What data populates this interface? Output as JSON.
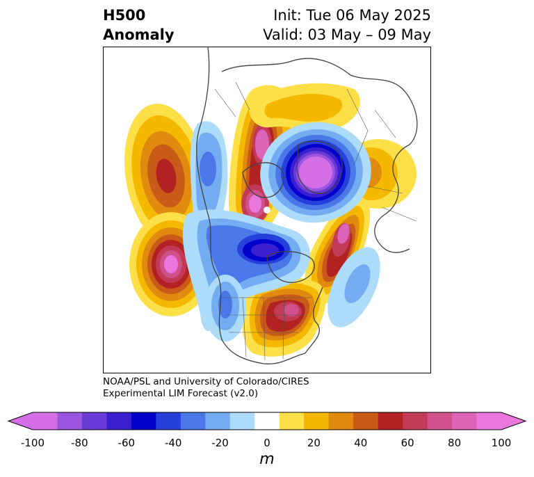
{
  "header": {
    "title_line1": "H500",
    "title_line2": "Anomaly",
    "init_text": "Init: Tue 06 May 2025",
    "valid_text": "Valid: 03 May – 09 May"
  },
  "credit": {
    "line1": "NOAA/PSL and University of Colorado/CIRES",
    "line2": "Experimental LIM Forecast (v2.0)"
  },
  "colorbar": {
    "units": "m",
    "ticks": [
      "-100",
      "-80",
      "-60",
      "-40",
      "-20",
      "0",
      "20",
      "40",
      "60",
      "80",
      "100"
    ],
    "levels": [
      -100,
      -90,
      -80,
      -70,
      -60,
      -50,
      -40,
      -30,
      -20,
      -10,
      10,
      20,
      30,
      40,
      50,
      60,
      70,
      80,
      90,
      100
    ],
    "colors": [
      "#d46ee6",
      "#9b55de",
      "#6a3ad6",
      "#3a1fd0",
      "#0000cc",
      "#2540db",
      "#4b78e8",
      "#74acf2",
      "#addcfa",
      "#ffffff",
      "#fde047",
      "#f5b800",
      "#e08a10",
      "#c95a18",
      "#b22222",
      "#c23a55",
      "#d0508a",
      "#db64b8",
      "#ea78dc"
    ],
    "extend_low_color": "#d46ee6",
    "extend_high_color": "#ea78dc"
  },
  "map_data": {
    "field": "500 hPa geopotential height anomaly",
    "projection": "north-polar-stereographic",
    "anomalies": [
      {
        "sign": "positive",
        "peak_m": 75,
        "region": "North Pacific west"
      },
      {
        "sign": "positive",
        "peak_m": 95,
        "region": "Central North Pacific"
      },
      {
        "sign": "positive",
        "peak_m": 95,
        "region": "Siberia / Arctic"
      },
      {
        "sign": "positive",
        "peak_m": 80,
        "region": "Scandinavia / North Atlantic"
      },
      {
        "sign": "positive",
        "peak_m": 75,
        "region": "Eastern Canada / Great Lakes"
      },
      {
        "sign": "positive",
        "peak_m": 35,
        "region": "Western Europe"
      },
      {
        "sign": "negative",
        "peak_m": -95,
        "region": "Eurasian Arctic / Kara Sea"
      },
      {
        "sign": "negative",
        "peak_m": -70,
        "region": "Western Canada / Arctic"
      },
      {
        "sign": "negative",
        "peak_m": -40,
        "region": "Western Siberia"
      },
      {
        "sign": "negative",
        "peak_m": -35,
        "region": "Western United States"
      },
      {
        "sign": "negative",
        "peak_m": -25,
        "region": "Central North Atlantic"
      }
    ]
  }
}
